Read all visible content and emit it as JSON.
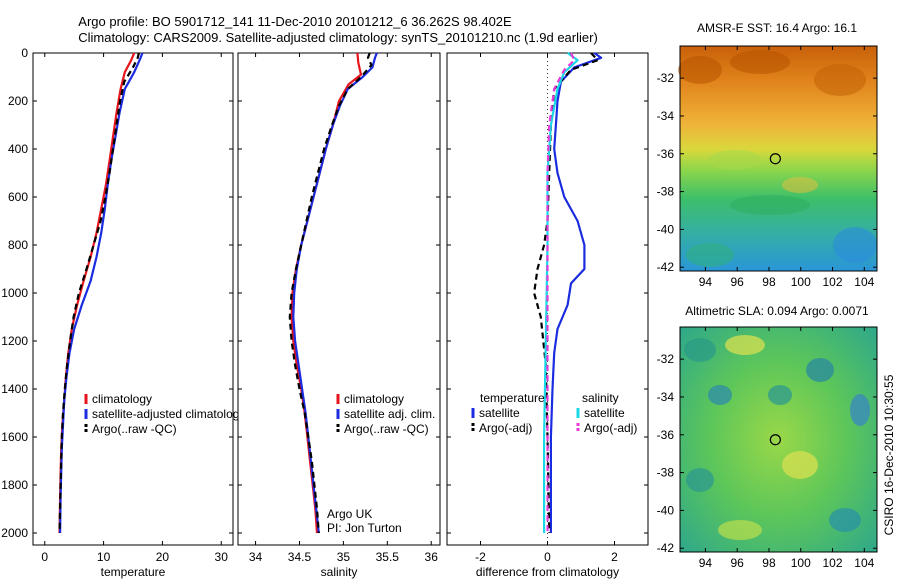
{
  "figure": {
    "title_line1": "Argo profile: BO 5901712_141 11-Dec-2010 20101212_6 36.262S 98.402E",
    "title_line2": "Climatology: CARS2009. Satellite-adjusted climatology: synTS_20101210.nc (1.9d earlier)",
    "side_credit": "CSIRO 16-Dec-2010 10:30:55"
  },
  "chart_data": [
    {
      "id": "temperature",
      "type": "line",
      "xlabel": "temperature",
      "ylabel": "",
      "xlim": [
        -2,
        32
      ],
      "ylim": [
        2050,
        0
      ],
      "xticks": [
        0,
        10,
        20,
        30
      ],
      "yticks": [
        0,
        200,
        400,
        600,
        800,
        1000,
        1200,
        1400,
        1600,
        1800,
        2000
      ],
      "legend": [
        "climatology",
        "satellite-adjusted climatology",
        "Argo(..raw -QC)"
      ],
      "series": [
        {
          "name": "climatology",
          "color": "#e8141b",
          "dash": "",
          "points": [
            [
              15.2,
              0
            ],
            [
              14.7,
              30
            ],
            [
              13.6,
              80
            ],
            [
              12.9,
              150
            ],
            [
              12.2,
              250
            ],
            [
              11.6,
              350
            ],
            [
              11.0,
              450
            ],
            [
              10.4,
              550
            ],
            [
              9.6,
              650
            ],
            [
              8.8,
              750
            ],
            [
              7.8,
              850
            ],
            [
              6.6,
              950
            ],
            [
              5.5,
              1050
            ],
            [
              4.6,
              1150
            ],
            [
              4.0,
              1250
            ],
            [
              3.6,
              1350
            ],
            [
              3.3,
              1450
            ],
            [
              3.0,
              1550
            ],
            [
              2.8,
              1650
            ],
            [
              2.7,
              1750
            ],
            [
              2.6,
              1850
            ],
            [
              2.5,
              2000
            ]
          ]
        },
        {
          "name": "satellite-adjusted climatology",
          "color": "#1a2be0",
          "dash": "",
          "points": [
            [
              16.6,
              0
            ],
            [
              16.3,
              20
            ],
            [
              15.2,
              80
            ],
            [
              13.6,
              150
            ],
            [
              12.7,
              250
            ],
            [
              12.0,
              350
            ],
            [
              11.3,
              450
            ],
            [
              10.7,
              550
            ],
            [
              10.2,
              650
            ],
            [
              9.6,
              750
            ],
            [
              8.8,
              850
            ],
            [
              7.8,
              950
            ],
            [
              6.3,
              1050
            ],
            [
              5.0,
              1150
            ],
            [
              4.2,
              1250
            ],
            [
              3.7,
              1350
            ],
            [
              3.3,
              1450
            ],
            [
              3.1,
              1550
            ],
            [
              2.9,
              1650
            ],
            [
              2.8,
              1750
            ],
            [
              2.7,
              1850
            ],
            [
              2.6,
              2000
            ]
          ]
        },
        {
          "name": "Argo(..raw -QC)",
          "color": "#000000",
          "dash": "6,4",
          "points": [
            [
              16.0,
              0
            ],
            [
              15.8,
              20
            ],
            [
              15.0,
              60
            ],
            [
              13.5,
              120
            ],
            [
              12.8,
              200
            ],
            [
              12.2,
              300
            ],
            [
              11.6,
              400
            ],
            [
              11.0,
              500
            ],
            [
              10.3,
              600
            ],
            [
              9.5,
              700
            ],
            [
              8.3,
              800
            ],
            [
              7.1,
              900
            ],
            [
              5.8,
              1000
            ],
            [
              4.9,
              1100
            ],
            [
              4.3,
              1200
            ],
            [
              3.8,
              1300
            ],
            [
              3.4,
              1400
            ],
            [
              3.1,
              1500
            ],
            [
              2.9,
              1600
            ],
            [
              2.8,
              1700
            ],
            [
              2.7,
              1800
            ],
            [
              2.6,
              1900
            ],
            [
              2.5,
              2000
            ]
          ]
        }
      ]
    },
    {
      "id": "salinity",
      "type": "line",
      "xlabel": "salinity",
      "ylabel": "",
      "xlim": [
        33.8,
        36.1
      ],
      "ylim": [
        2050,
        0
      ],
      "xticks": [
        34,
        34.5,
        35,
        35.5,
        36
      ],
      "yticks": [
        0,
        200,
        400,
        600,
        800,
        1000,
        1200,
        1400,
        1600,
        1800,
        2000
      ],
      "annotation_lines": [
        "Argo UK",
        "PI: Jon Turton"
      ],
      "legend": [
        "climatology",
        "satellite adj. clim.",
        "Argo(..raw -QC)"
      ],
      "series": [
        {
          "name": "climatology",
          "color": "#e8141b",
          "dash": "",
          "points": [
            [
              35.16,
              0
            ],
            [
              35.17,
              40
            ],
            [
              35.2,
              90
            ],
            [
              35.06,
              130
            ],
            [
              34.95,
              200
            ],
            [
              34.88,
              300
            ],
            [
              34.8,
              400
            ],
            [
              34.73,
              500
            ],
            [
              34.66,
              600
            ],
            [
              34.59,
              700
            ],
            [
              34.52,
              800
            ],
            [
              34.46,
              900
            ],
            [
              34.42,
              1000
            ],
            [
              34.41,
              1100
            ],
            [
              34.43,
              1200
            ],
            [
              34.47,
              1300
            ],
            [
              34.52,
              1400
            ],
            [
              34.56,
              1500
            ],
            [
              34.59,
              1600
            ],
            [
              34.62,
              1700
            ],
            [
              34.65,
              1800
            ],
            [
              34.68,
              1900
            ],
            [
              34.7,
              2000
            ]
          ]
        },
        {
          "name": "satellite adj. clim.",
          "color": "#1a2be0",
          "dash": "",
          "points": [
            [
              35.38,
              0
            ],
            [
              35.36,
              20
            ],
            [
              35.33,
              60
            ],
            [
              35.22,
              100
            ],
            [
              35.05,
              150
            ],
            [
              34.96,
              220
            ],
            [
              34.88,
              300
            ],
            [
              34.8,
              400
            ],
            [
              34.73,
              500
            ],
            [
              34.66,
              600
            ],
            [
              34.59,
              700
            ],
            [
              34.52,
              800
            ],
            [
              34.47,
              900
            ],
            [
              34.44,
              1000
            ],
            [
              34.43,
              1100
            ],
            [
              34.45,
              1200
            ],
            [
              34.49,
              1300
            ],
            [
              34.53,
              1400
            ],
            [
              34.57,
              1500
            ],
            [
              34.6,
              1600
            ],
            [
              34.63,
              1700
            ],
            [
              34.66,
              1800
            ],
            [
              34.69,
              1900
            ],
            [
              34.72,
              2000
            ]
          ]
        },
        {
          "name": "Argo(..raw -QC)",
          "color": "#000000",
          "dash": "6,4",
          "points": [
            [
              35.3,
              0
            ],
            [
              35.28,
              20
            ],
            [
              35.32,
              50
            ],
            [
              35.2,
              100
            ],
            [
              35.05,
              150
            ],
            [
              34.95,
              220
            ],
            [
              34.87,
              300
            ],
            [
              34.78,
              400
            ],
            [
              34.71,
              500
            ],
            [
              34.64,
              600
            ],
            [
              34.58,
              700
            ],
            [
              34.52,
              800
            ],
            [
              34.46,
              900
            ],
            [
              34.41,
              1000
            ],
            [
              34.39,
              1100
            ],
            [
              34.41,
              1200
            ],
            [
              34.45,
              1300
            ],
            [
              34.5,
              1400
            ],
            [
              34.56,
              1500
            ],
            [
              34.6,
              1600
            ],
            [
              34.64,
              1700
            ],
            [
              34.67,
              1800
            ],
            [
              34.7,
              1900
            ],
            [
              34.72,
              2000
            ]
          ]
        }
      ]
    },
    {
      "id": "difference",
      "type": "line",
      "xlabel": "difference from climatology",
      "ylabel": "",
      "xlim": [
        -3,
        3
      ],
      "ylim": [
        2050,
        0
      ],
      "xticks": [
        -2,
        0,
        2
      ],
      "yticks": [
        0,
        200,
        400,
        600,
        800,
        1000,
        1200,
        1400,
        1600,
        1800,
        2000
      ],
      "legend_groups": [
        {
          "heading": "temperature",
          "items": [
            "satellite",
            "Argo(-adj)"
          ]
        },
        {
          "heading": "salinity",
          "items": [
            "satellite",
            "Argo(-adj)"
          ]
        }
      ],
      "series": [
        {
          "name": "temperature satellite",
          "color": "#1a2be0",
          "dash": "",
          "points": [
            [
              1.4,
              0
            ],
            [
              1.6,
              20
            ],
            [
              0.8,
              60
            ],
            [
              0.4,
              120
            ],
            [
              0.3,
              200
            ],
            [
              0.25,
              300
            ],
            [
              0.2,
              400
            ],
            [
              0.3,
              500
            ],
            [
              0.5,
              600
            ],
            [
              0.9,
              700
            ],
            [
              1.1,
              800
            ],
            [
              1.1,
              900
            ],
            [
              0.7,
              960
            ],
            [
              0.6,
              1050
            ],
            [
              0.3,
              1150
            ],
            [
              0.2,
              1250
            ],
            [
              0.15,
              1400
            ],
            [
              0.1,
              1600
            ],
            [
              0.1,
              1800
            ],
            [
              0.1,
              2000
            ]
          ]
        },
        {
          "name": "temperature Argo(-adj)",
          "color": "#000000",
          "dash": "6,4",
          "points": [
            [
              1.3,
              0
            ],
            [
              1.5,
              30
            ],
            [
              0.7,
              70
            ],
            [
              0.2,
              150
            ],
            [
              0.1,
              300
            ],
            [
              0.05,
              500
            ],
            [
              0.0,
              700
            ],
            [
              -0.1,
              800
            ],
            [
              -0.3,
              900
            ],
            [
              -0.4,
              1000
            ],
            [
              -0.2,
              1100
            ],
            [
              -0.05,
              1300
            ],
            [
              0.0,
              1600
            ],
            [
              0.05,
              2000
            ]
          ]
        },
        {
          "name": "salinity satellite",
          "color": "#1ad8e8",
          "dash": "",
          "points": [
            [
              0.6,
              0
            ],
            [
              0.9,
              30
            ],
            [
              0.5,
              80
            ],
            [
              0.3,
              150
            ],
            [
              0.1,
              300
            ],
            [
              0.0,
              500
            ],
            [
              0.0,
              800
            ],
            [
              -0.05,
              1200
            ],
            [
              -0.1,
              1600
            ],
            [
              -0.1,
              2000
            ]
          ]
        },
        {
          "name": "salinity Argo(-adj)",
          "color": "#e63bd9",
          "dash": "6,4",
          "points": [
            [
              0.7,
              0
            ],
            [
              0.8,
              30
            ],
            [
              0.5,
              70
            ],
            [
              0.2,
              150
            ],
            [
              0.05,
              300
            ],
            [
              0.0,
              500
            ],
            [
              0.0,
              800
            ],
            [
              0.0,
              1200
            ],
            [
              0.0,
              1600
            ],
            [
              0.0,
              2000
            ]
          ]
        }
      ]
    },
    {
      "id": "sst-map",
      "type": "heatmap",
      "title": "AMSR-E SST: 16.4 Argo: 16.1",
      "xlim": [
        92.4,
        104.8
      ],
      "ylim": [
        -42.2,
        -30.3
      ],
      "xticks": [
        94,
        96,
        98,
        100,
        102,
        104
      ],
      "yticks": [
        -32,
        -34,
        -36,
        -38,
        -40,
        -42
      ],
      "marker": {
        "lon": 98.402,
        "lat": -36.262
      }
    },
    {
      "id": "sla-map",
      "type": "heatmap",
      "title": "Altimetric SLA: 0.094 Argo: 0.0071",
      "xlim": [
        92.4,
        104.8
      ],
      "ylim": [
        -42.2,
        -30.3
      ],
      "xticks": [
        94,
        96,
        98,
        100,
        102,
        104
      ],
      "yticks": [
        -32,
        -34,
        -36,
        -38,
        -40,
        -42
      ],
      "marker": {
        "lon": 98.402,
        "lat": -36.262
      }
    }
  ]
}
